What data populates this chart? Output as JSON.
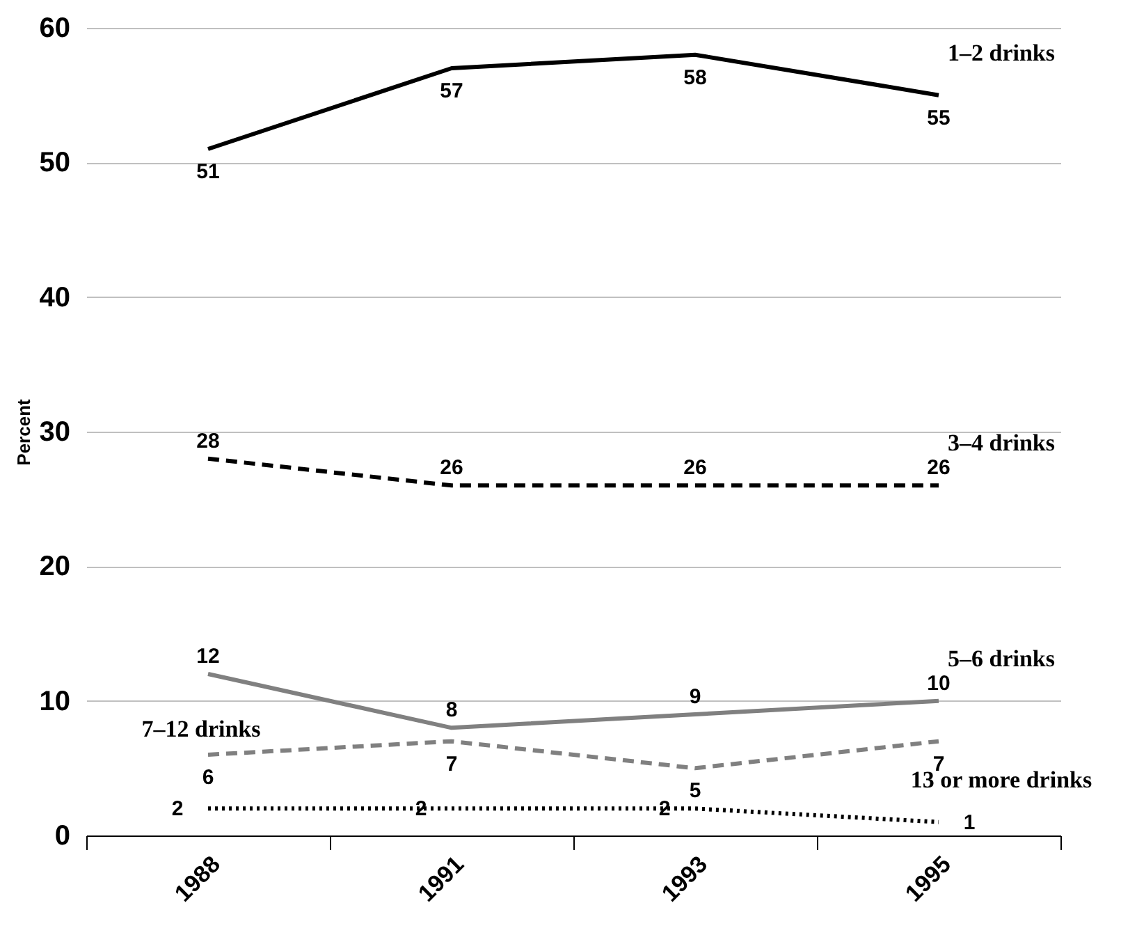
{
  "chart_data": {
    "type": "line",
    "ylabel": "Percent",
    "categories": [
      "1988",
      "1991",
      "1993",
      "1995"
    ],
    "ylim": [
      0,
      60
    ],
    "yticks": [
      0,
      10,
      20,
      30,
      40,
      50,
      60
    ],
    "grid": "y",
    "data_labels": true,
    "marker": "none",
    "series": [
      {
        "name": "1–2 drinks",
        "color": "#000000",
        "line_style": "solid",
        "values": [
          51,
          57,
          58,
          55
        ]
      },
      {
        "name": "3–4 drinks",
        "color": "#000000",
        "line_style": "dashed",
        "values": [
          28,
          26,
          26,
          26
        ]
      },
      {
        "name": "5–6 drinks",
        "color": "#808080",
        "line_style": "solid",
        "values": [
          12,
          8,
          9,
          10
        ]
      },
      {
        "name": "7–12 drinks",
        "color": "#808080",
        "line_style": "dashed",
        "values": [
          6,
          7,
          5,
          7
        ]
      },
      {
        "name": "13 or more drinks",
        "color": "#000000",
        "line_style": "dotted",
        "values": [
          2,
          2,
          2,
          1
        ]
      }
    ]
  }
}
